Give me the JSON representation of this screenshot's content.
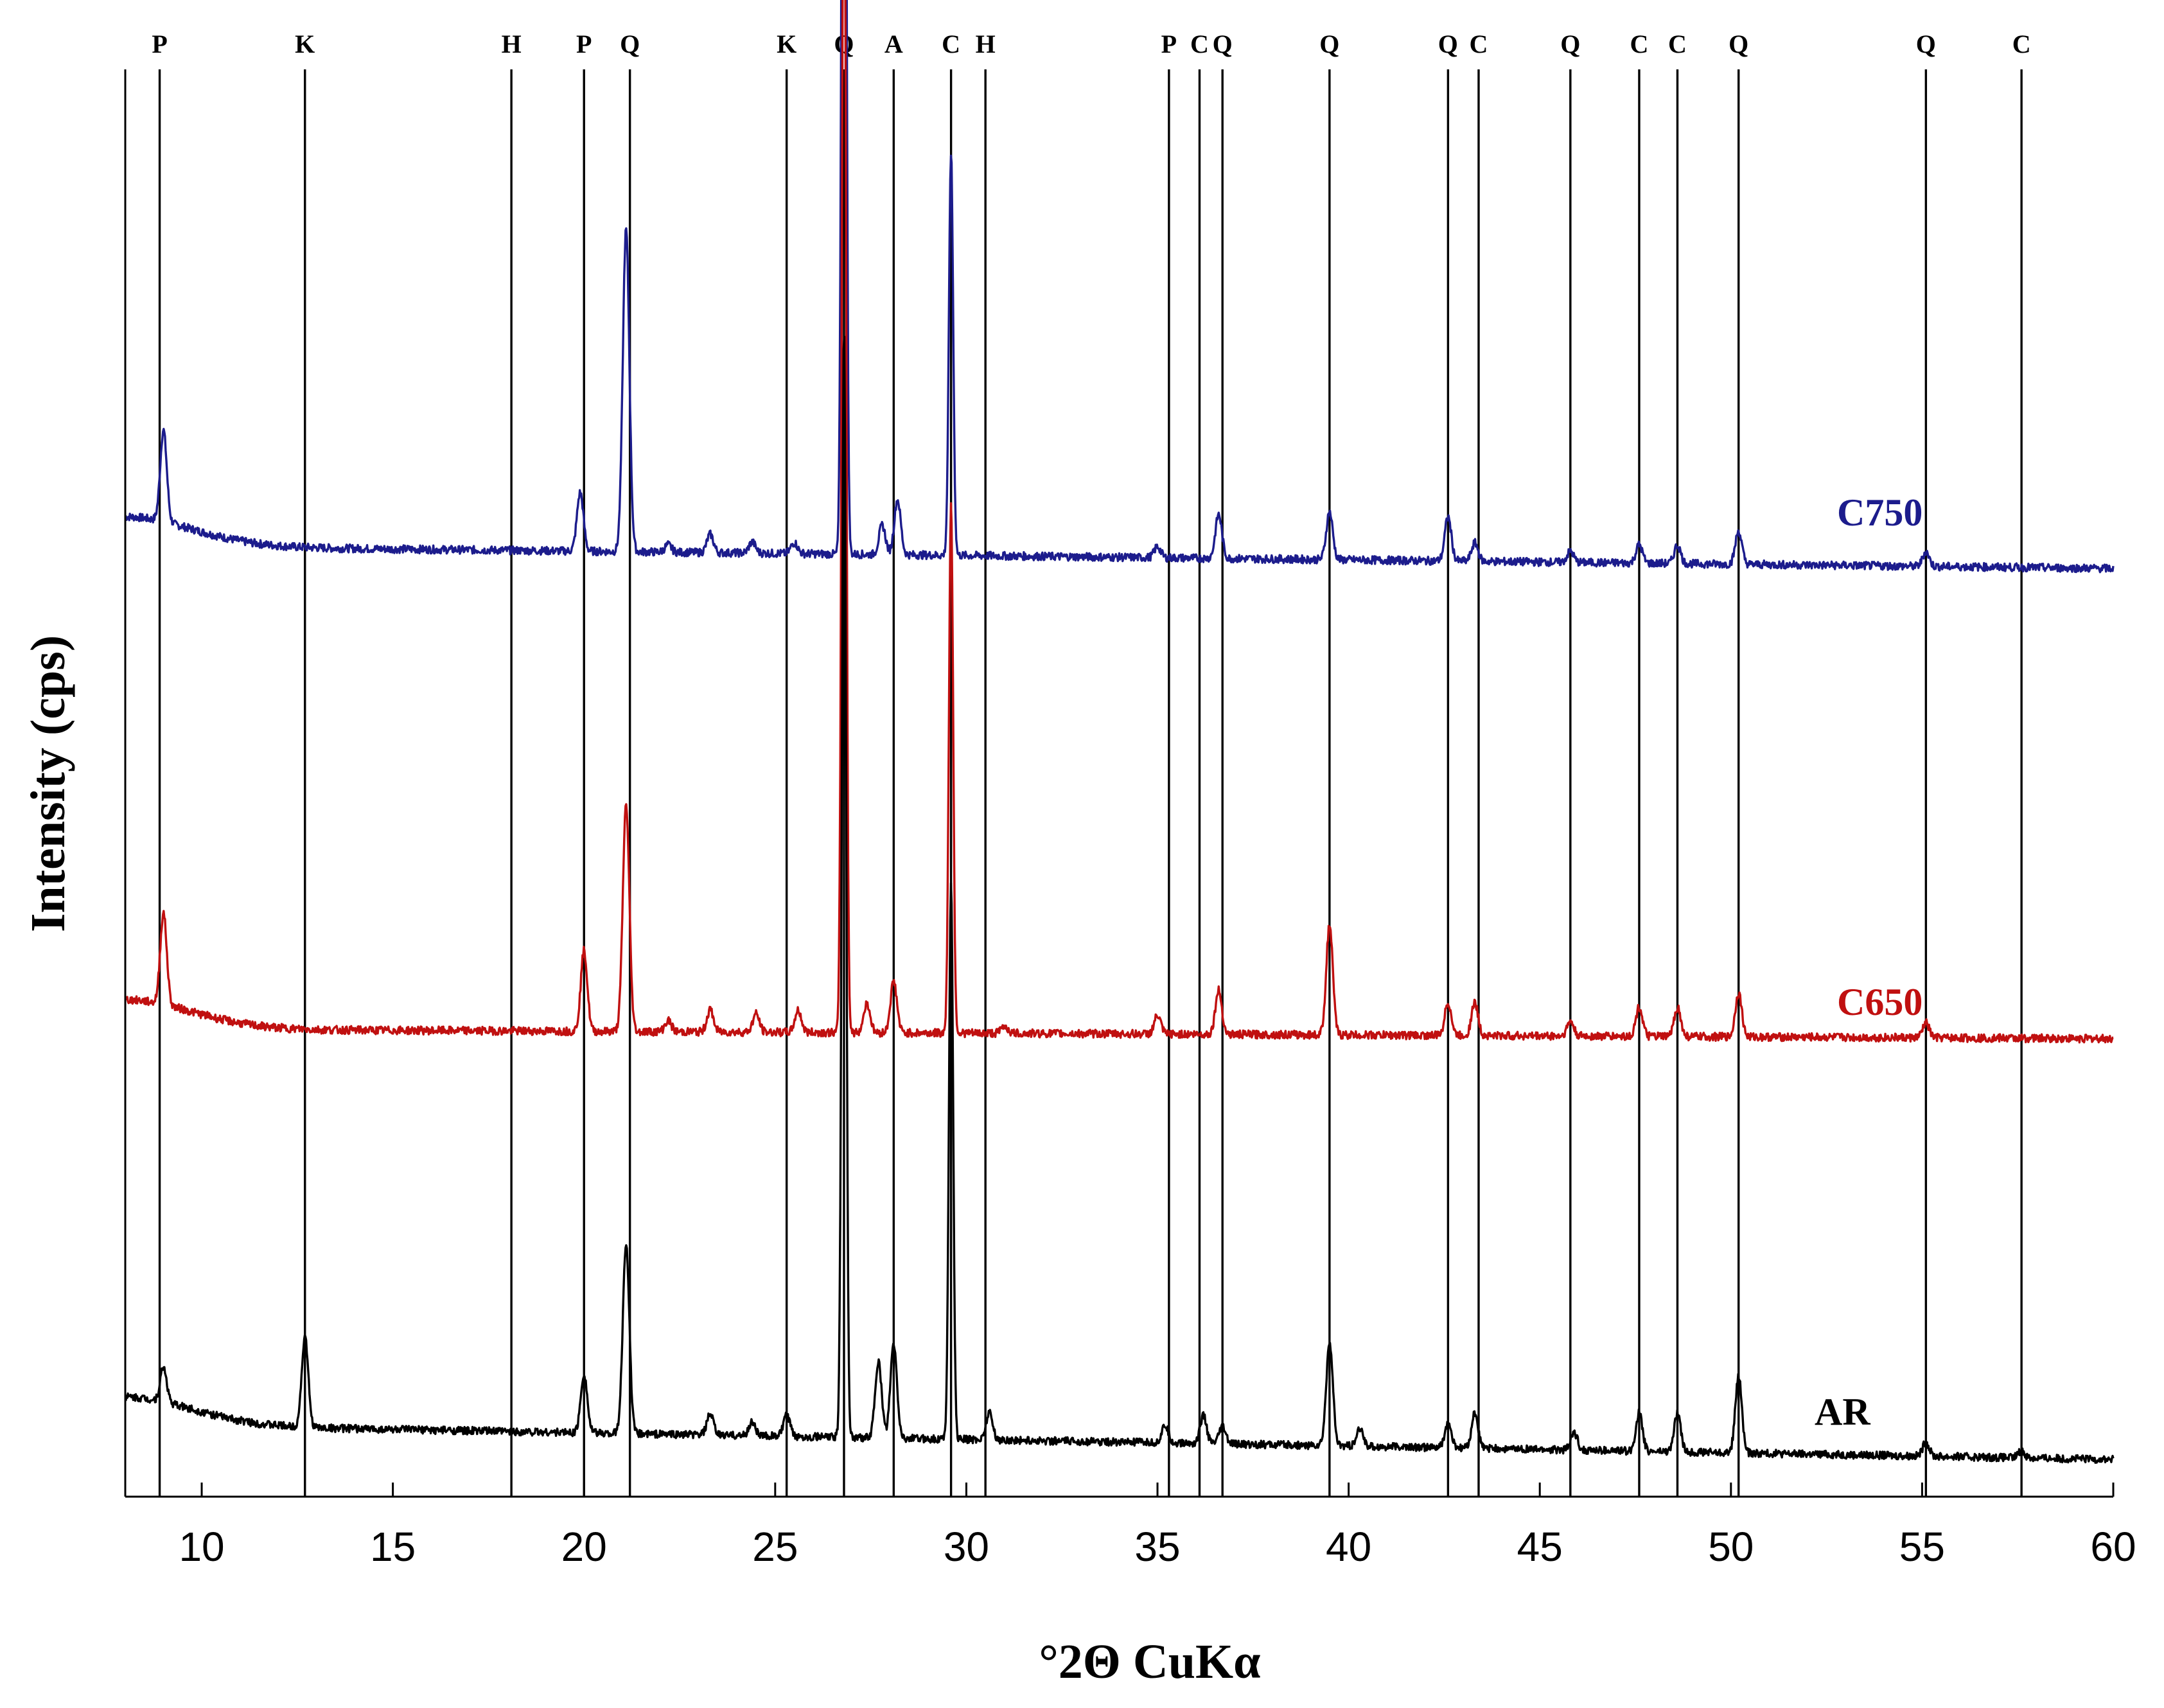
{
  "chart_data": {
    "type": "line",
    "title": "",
    "xlabel": "°2Θ CuKα",
    "ylabel": "Intensity (cps)",
    "xlim": [
      8,
      60
    ],
    "x_ticks": [
      10,
      15,
      20,
      25,
      30,
      35,
      40,
      45,
      50,
      55,
      60
    ],
    "y_ticks": [],
    "grid": false,
    "reference_lines": [
      {
        "label": "P",
        "x": 8.9
      },
      {
        "label": "K",
        "x": 12.7
      },
      {
        "label": "H",
        "x": 18.1
      },
      {
        "label": "P",
        "x": 20.0
      },
      {
        "label": "Q",
        "x": 21.2
      },
      {
        "label": "K",
        "x": 25.3
      },
      {
        "label": "Q",
        "x": 26.8
      },
      {
        "label": "A",
        "x": 28.1
      },
      {
        "label": "C",
        "x": 29.6
      },
      {
        "label": "H",
        "x": 30.5
      },
      {
        "label": "P",
        "x": 35.3
      },
      {
        "label": "C",
        "x": 36.1
      },
      {
        "label": "Q",
        "x": 36.7
      },
      {
        "label": "Q",
        "x": 39.5
      },
      {
        "label": "Q",
        "x": 42.6
      },
      {
        "label": "C",
        "x": 43.4
      },
      {
        "label": "Q",
        "x": 45.8
      },
      {
        "label": "C",
        "x": 47.6
      },
      {
        "label": "C",
        "x": 48.6
      },
      {
        "label": "Q",
        "x": 50.2
      },
      {
        "label": "Q",
        "x": 55.1
      },
      {
        "label": "C",
        "x": 57.6
      }
    ],
    "series": [
      {
        "name": "C750",
        "color": "#1c1c8c",
        "peaks": [
          {
            "x": 9.0,
            "y": 2.5
          },
          {
            "x": 19.9,
            "y": 1.6
          },
          {
            "x": 21.1,
            "y": 8.8
          },
          {
            "x": 22.2,
            "y": 0.2
          },
          {
            "x": 23.3,
            "y": 0.5
          },
          {
            "x": 24.4,
            "y": 0.3
          },
          {
            "x": 25.5,
            "y": 0.3
          },
          {
            "x": 26.8,
            "y": 36.0
          },
          {
            "x": 27.8,
            "y": 0.8
          },
          {
            "x": 28.2,
            "y": 1.5
          },
          {
            "x": 29.6,
            "y": 11.0
          },
          {
            "x": 35.0,
            "y": 0.3
          },
          {
            "x": 36.6,
            "y": 1.2
          },
          {
            "x": 39.5,
            "y": 1.3
          },
          {
            "x": 42.6,
            "y": 1.2
          },
          {
            "x": 43.3,
            "y": 0.5
          },
          {
            "x": 45.8,
            "y": 0.3
          },
          {
            "x": 47.6,
            "y": 0.5
          },
          {
            "x": 48.6,
            "y": 0.5
          },
          {
            "x": 50.2,
            "y": 0.9
          },
          {
            "x": 55.1,
            "y": 0.4
          }
        ]
      },
      {
        "name": "C650",
        "color": "#c01010",
        "peaks": [
          {
            "x": 9.0,
            "y": 2.5
          },
          {
            "x": 20.0,
            "y": 2.2
          },
          {
            "x": 21.1,
            "y": 6.2
          },
          {
            "x": 22.2,
            "y": 0.3
          },
          {
            "x": 23.3,
            "y": 0.6
          },
          {
            "x": 24.5,
            "y": 0.5
          },
          {
            "x": 25.6,
            "y": 0.6
          },
          {
            "x": 26.8,
            "y": 35.5
          },
          {
            "x": 27.4,
            "y": 0.8
          },
          {
            "x": 28.1,
            "y": 1.4
          },
          {
            "x": 29.6,
            "y": 14.5
          },
          {
            "x": 31.0,
            "y": 0.2
          },
          {
            "x": 35.0,
            "y": 0.5
          },
          {
            "x": 36.6,
            "y": 1.2
          },
          {
            "x": 39.5,
            "y": 3.0
          },
          {
            "x": 42.6,
            "y": 0.9
          },
          {
            "x": 43.3,
            "y": 0.9
          },
          {
            "x": 45.8,
            "y": 0.4
          },
          {
            "x": 47.6,
            "y": 0.8
          },
          {
            "x": 48.6,
            "y": 0.8
          },
          {
            "x": 50.2,
            "y": 1.2
          },
          {
            "x": 55.1,
            "y": 0.4
          }
        ]
      },
      {
        "name": "AR",
        "color": "#000000",
        "peaks": [
          {
            "x": 9.0,
            "y": 1.0
          },
          {
            "x": 12.7,
            "y": 2.6
          },
          {
            "x": 20.0,
            "y": 1.7
          },
          {
            "x": 21.1,
            "y": 5.5
          },
          {
            "x": 23.3,
            "y": 0.6
          },
          {
            "x": 24.4,
            "y": 0.4
          },
          {
            "x": 25.3,
            "y": 0.6
          },
          {
            "x": 26.8,
            "y": 32.0
          },
          {
            "x": 27.7,
            "y": 2.2
          },
          {
            "x": 28.1,
            "y": 2.7
          },
          {
            "x": 29.6,
            "y": 16.0
          },
          {
            "x": 30.6,
            "y": 0.8
          },
          {
            "x": 35.2,
            "y": 0.5
          },
          {
            "x": 36.2,
            "y": 0.8
          },
          {
            "x": 36.7,
            "y": 0.5
          },
          {
            "x": 39.5,
            "y": 3.0
          },
          {
            "x": 40.3,
            "y": 0.5
          },
          {
            "x": 42.6,
            "y": 0.7
          },
          {
            "x": 43.3,
            "y": 1.0
          },
          {
            "x": 45.9,
            "y": 0.5
          },
          {
            "x": 47.6,
            "y": 1.1
          },
          {
            "x": 48.6,
            "y": 1.1
          },
          {
            "x": 50.2,
            "y": 2.2
          },
          {
            "x": 55.1,
            "y": 0.4
          },
          {
            "x": 57.6,
            "y": 0.2
          }
        ]
      }
    ]
  }
}
